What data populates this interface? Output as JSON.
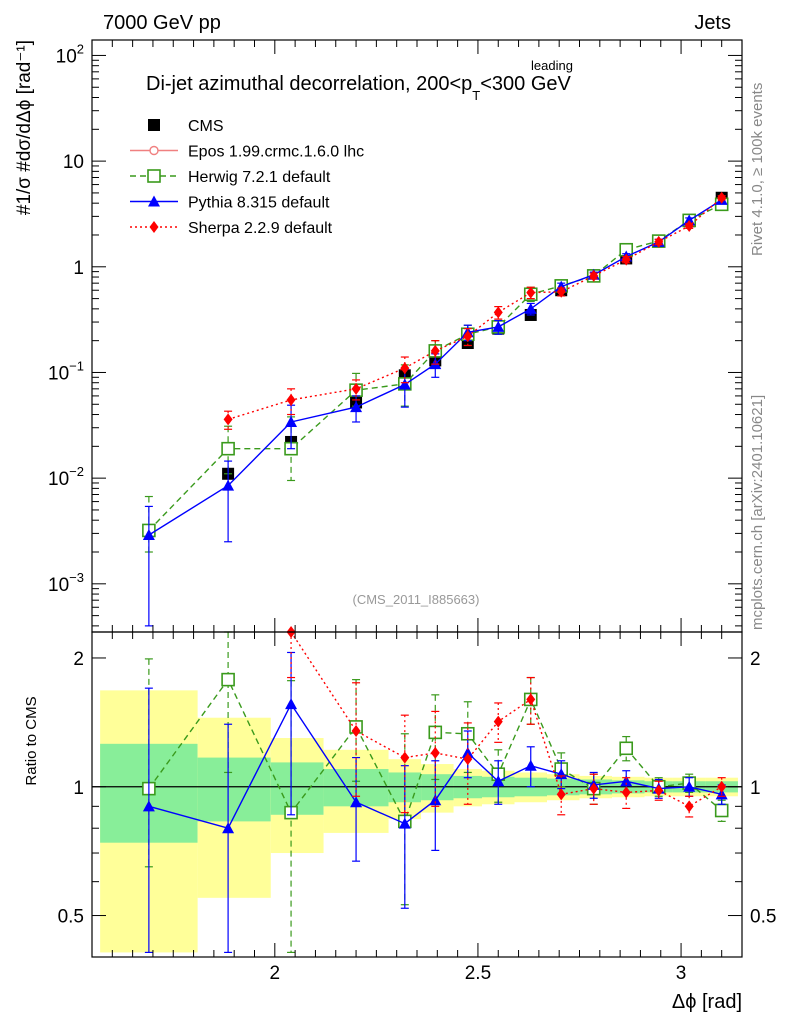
{
  "header": {
    "left": "7000 GeV pp",
    "right": "Jets"
  },
  "side_labels": {
    "rivet": "Rivet 4.1.0, ≥ 100k events",
    "mcplots": "mcplots.cern.ch [arXiv:2401.10621]"
  },
  "chart_data": {
    "type": "line",
    "title_main": "Di-jet azimuthal decorrelation, 200<p",
    "title_sup": "leading",
    "title_sub": "T",
    "title_end": "<300 GeV",
    "analysis_id": "(CMS_2011_I885663)",
    "xlabel": "Δϕ [rad]",
    "ylabel": "#1/σ #dσ/dΔϕ [rad⁻¹]",
    "ratio_ylabel": "Ratio to CMS",
    "xlim": [
      1.55,
      3.15
    ],
    "ylim": [
      0.00035,
      140
    ],
    "yscale": "log",
    "ratio_ylim": [
      0.4,
      2.3
    ],
    "x_ticks": [
      2,
      2.5,
      3
    ],
    "x_tick_labels": [
      "2",
      "2.5",
      "3"
    ],
    "y_tick_labels": [
      {
        "base": "10",
        "exp": "2"
      },
      {
        "base": "10",
        "exp": ""
      },
      {
        "base": "1",
        "exp": ""
      },
      {
        "base": "10",
        "exp": "−1"
      },
      {
        "base": "10",
        "exp": "−2"
      },
      {
        "base": "10",
        "exp": "−3"
      }
    ],
    "y_tick_values": [
      100,
      10,
      1,
      0.1,
      0.01,
      0.001
    ],
    "ratio_ticks": [
      0.5,
      1,
      2
    ],
    "ratio_tick_labels": [
      "0.5",
      "1",
      "2"
    ],
    "bins": [
      [
        1.57,
        1.81
      ],
      [
        1.81,
        1.99
      ],
      [
        1.99,
        2.12
      ],
      [
        2.12,
        2.28
      ],
      [
        2.28,
        2.36
      ],
      [
        2.36,
        2.44
      ],
      [
        2.44,
        2.51
      ],
      [
        2.51,
        2.59
      ],
      [
        2.59,
        2.67
      ],
      [
        2.67,
        2.75
      ],
      [
        2.75,
        2.83
      ],
      [
        2.83,
        2.91
      ],
      [
        2.91,
        2.98
      ],
      [
        2.98,
        3.06
      ],
      [
        3.06,
        3.14
      ]
    ],
    "x": [
      1.69,
      1.885,
      2.04,
      2.2,
      2.32,
      2.395,
      2.475,
      2.55,
      2.63,
      2.705,
      2.785,
      2.865,
      2.945,
      3.02,
      3.1
    ],
    "band_inner": [
      0.26,
      0.17,
      0.14,
      0.1,
      0.08,
      0.07,
      0.06,
      0.055,
      0.05,
      0.045,
      0.04,
      0.035,
      0.03,
      0.03,
      0.03
    ],
    "band_outer": [
      0.68,
      0.45,
      0.3,
      0.22,
      0.16,
      0.13,
      0.1,
      0.09,
      0.08,
      0.07,
      0.06,
      0.055,
      0.05,
      0.05,
      0.05
    ],
    "legend": [
      {
        "name": "CMS",
        "color": "#000000",
        "marker": "square",
        "dash": "none"
      },
      {
        "name": "Epos 1.99.crmc.1.6.0 lhc",
        "color": "#f08080",
        "marker": "open-circle",
        "dash": "solid"
      },
      {
        "name": "Herwig 7.2.1 default",
        "color": "#3a9a1c",
        "marker": "open-square",
        "dash": "dashed"
      },
      {
        "name": "Pythia 8.315 default",
        "color": "#0000ff",
        "marker": "triangle",
        "dash": "solid"
      },
      {
        "name": "Sherpa 2.2.9 default",
        "color": "#ff0000",
        "marker": "diamond",
        "dash": "dotted"
      }
    ],
    "series": [
      {
        "name": "CMS",
        "values": [
          0.0032,
          0.011,
          0.022,
          0.052,
          0.094,
          0.13,
          0.19,
          0.26,
          0.35,
          0.6,
          0.83,
          1.2,
          1.75,
          2.7,
          4.5
        ]
      },
      {
        "name": "Herwig 7.2.1 default",
        "values": [
          0.0032,
          0.019,
          0.019,
          0.068,
          0.078,
          0.16,
          0.23,
          0.27,
          0.55,
          0.66,
          0.82,
          1.45,
          1.75,
          2.75,
          3.9
        ],
        "err_low": [
          0.0012,
          0.008,
          0.0095,
          0.02,
          0.03,
          0.04,
          0.05,
          0.04,
          0.08,
          0.06,
          0.05,
          0.1,
          0.1,
          0.15,
          0.2
        ],
        "err_high": [
          0.0035,
          0.012,
          0.019,
          0.03,
          0.04,
          0.04,
          0.05,
          0.04,
          0.09,
          0.06,
          0.05,
          0.1,
          0.1,
          0.15,
          0.2
        ]
      },
      {
        "name": "Pythia 8.315 default",
        "values": [
          0.0029,
          0.0085,
          0.034,
          0.047,
          0.077,
          0.12,
          0.24,
          0.27,
          0.4,
          0.65,
          0.84,
          1.25,
          1.72,
          2.75,
          4.3
        ],
        "err_low": [
          0.0025,
          0.006,
          0.015,
          0.013,
          0.03,
          0.03,
          0.04,
          0.04,
          0.05,
          0.05,
          0.05,
          0.08,
          0.1,
          0.15,
          0.2
        ],
        "err_high": [
          0.0025,
          0.006,
          0.015,
          0.013,
          0.03,
          0.03,
          0.04,
          0.04,
          0.05,
          0.05,
          0.05,
          0.08,
          0.1,
          0.15,
          0.2
        ]
      },
      {
        "name": "Sherpa 2.2.9 default",
        "values": [
          null,
          0.036,
          0.055,
          0.07,
          0.11,
          0.16,
          0.22,
          0.37,
          0.57,
          0.58,
          0.82,
          1.17,
          1.72,
          2.43,
          4.5
        ],
        "err_low": [
          null,
          0.007,
          0.015,
          0.015,
          0.03,
          0.04,
          0.04,
          0.05,
          0.07,
          0.05,
          0.05,
          0.08,
          0.1,
          0.12,
          0.2
        ],
        "err_high": [
          null,
          0.007,
          0.015,
          0.015,
          0.03,
          0.04,
          0.04,
          0.05,
          0.07,
          0.05,
          0.05,
          0.08,
          0.1,
          0.12,
          0.2
        ]
      }
    ],
    "ratios": [
      {
        "name": "Herwig 7.2.1 default",
        "values": [
          0.99,
          1.78,
          0.87,
          1.38,
          0.83,
          1.34,
          1.33,
          1.07,
          1.6,
          1.1,
          0.99,
          1.23,
          1.0,
          1.02,
          0.88
        ],
        "err_low": [
          0.34,
          0.7,
          0.5,
          0.35,
          0.3,
          0.3,
          0.25,
          0.15,
          0.2,
          0.1,
          0.08,
          0.08,
          0.05,
          0.05,
          0.05
        ],
        "err_high": [
          1.0,
          1.2,
          0.9,
          0.4,
          0.5,
          0.3,
          0.25,
          0.15,
          0.2,
          0.1,
          0.08,
          0.08,
          0.05,
          0.05,
          0.05
        ]
      },
      {
        "name": "Pythia 8.315 default",
        "values": [
          0.9,
          0.8,
          1.56,
          0.92,
          0.82,
          0.93,
          1.2,
          1.03,
          1.12,
          1.07,
          1.01,
          1.03,
          0.99,
          1.0,
          0.96
        ],
        "err_low": [
          0.7,
          0.6,
          0.7,
          0.25,
          0.3,
          0.22,
          0.15,
          0.12,
          0.12,
          0.08,
          0.07,
          0.06,
          0.05,
          0.05,
          0.05
        ],
        "err_high": [
          0.8,
          0.6,
          0.5,
          0.25,
          0.3,
          0.22,
          0.15,
          0.12,
          0.12,
          0.08,
          0.07,
          0.06,
          0.05,
          0.05,
          0.05
        ]
      },
      {
        "name": "Sherpa 2.2.9 default",
        "values": [
          null,
          null,
          2.3,
          1.35,
          1.17,
          1.2,
          1.16,
          1.42,
          1.6,
          0.96,
          0.99,
          0.97,
          0.98,
          0.9,
          1.0
        ],
        "err_low": [
          null,
          null,
          0.5,
          0.4,
          0.3,
          0.3,
          0.25,
          0.15,
          0.2,
          0.1,
          0.08,
          0.08,
          0.05,
          0.05,
          0.05
        ],
        "err_high": [
          null,
          null,
          0.5,
          0.4,
          0.3,
          0.3,
          0.25,
          0.15,
          0.2,
          0.1,
          0.08,
          0.08,
          0.05,
          0.05,
          0.05
        ]
      }
    ]
  }
}
